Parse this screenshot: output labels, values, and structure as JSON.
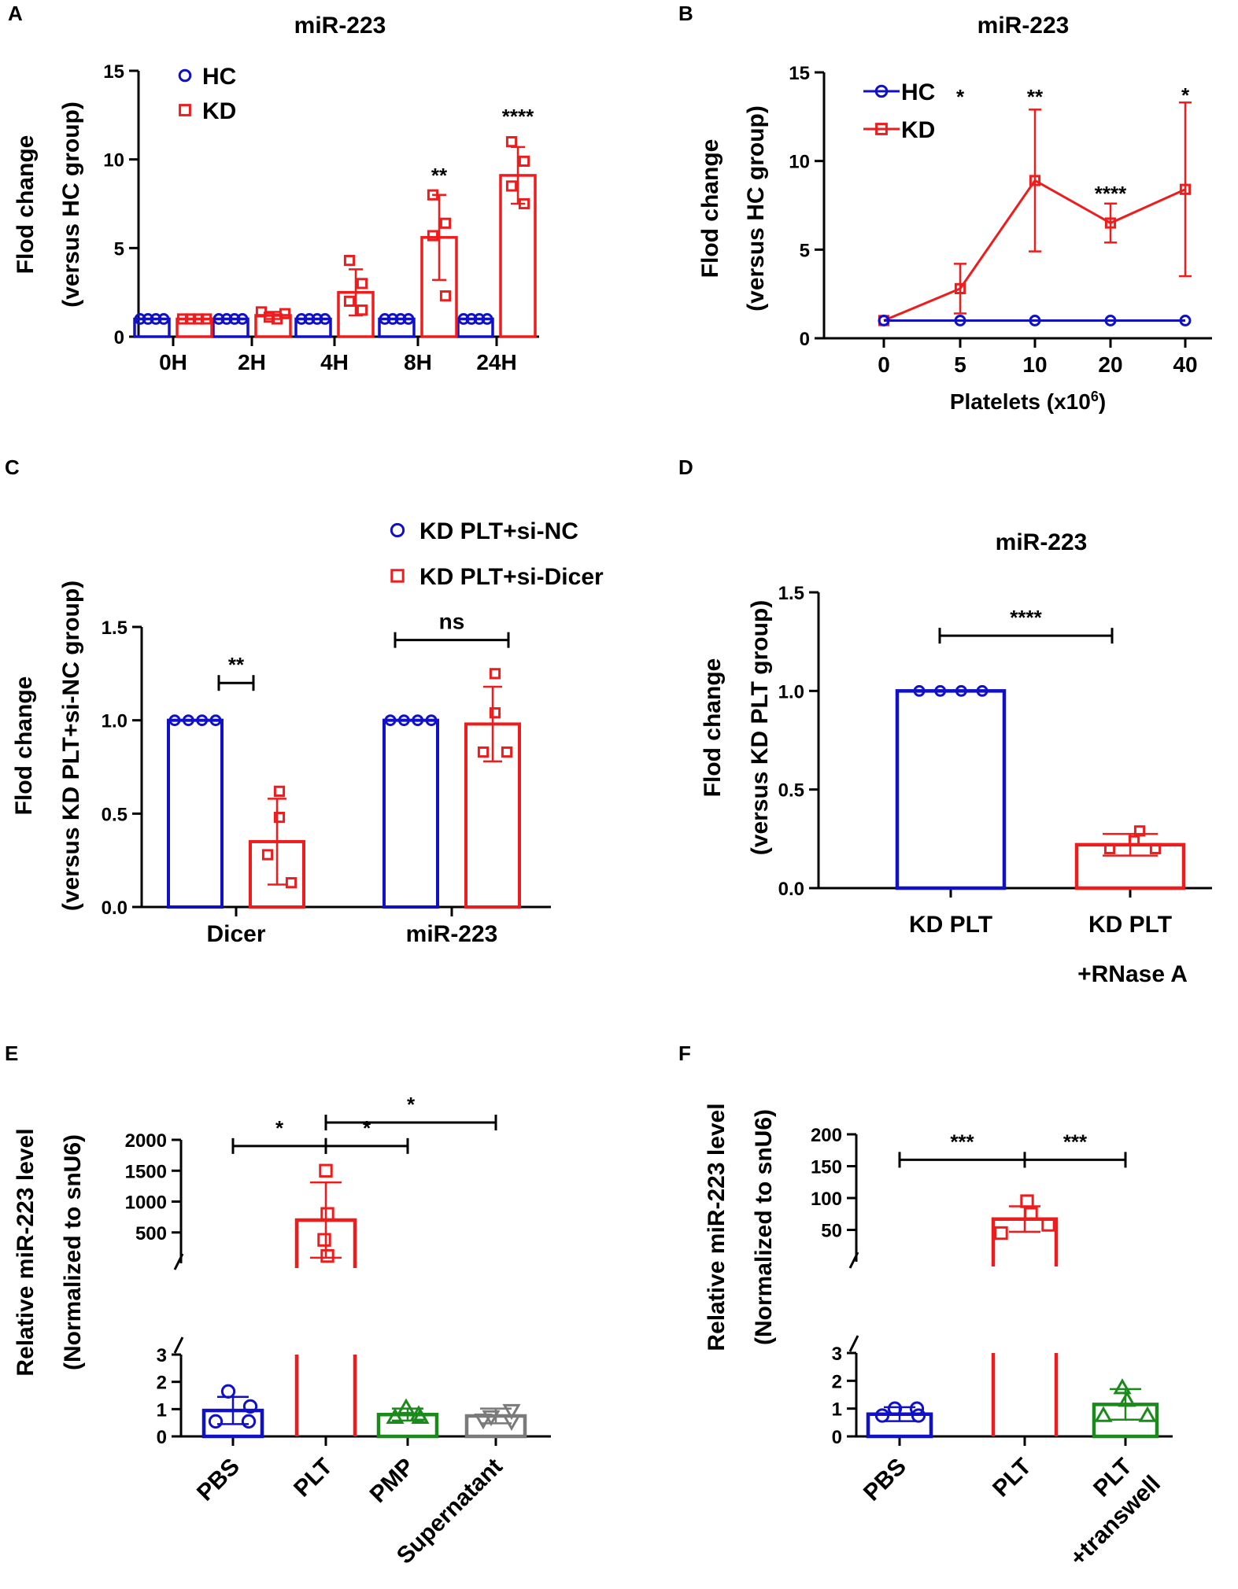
{
  "colors": {
    "hc": "#1010c8",
    "kd": "#ee1c1c",
    "green": "#1a8a1a",
    "gray": "#7a7a7a",
    "axis": "#000000"
  },
  "chart_data": [
    {
      "id": "A",
      "panel_label": "A",
      "type": "bar",
      "title": "miR-223",
      "ylabel_lines": [
        "Flod change",
        "(versus HC group)"
      ],
      "ylim": [
        0,
        15
      ],
      "yticks": [
        "0",
        "5",
        "10",
        "15"
      ],
      "categories": [
        "0H",
        "2H",
        "4H",
        "8H",
        "24H"
      ],
      "legend": [
        {
          "label": "HC",
          "marker": "circle",
          "color": "#1010c8"
        },
        {
          "label": "KD",
          "marker": "square",
          "color": "#ee1c1c"
        }
      ],
      "series": [
        {
          "name": "HC",
          "color": "#1010c8",
          "marker": "circle",
          "values": [
            1,
            1,
            1,
            1,
            1
          ],
          "sd": [
            0,
            0,
            0,
            0,
            0
          ],
          "points": [
            [
              1,
              1,
              1,
              1
            ],
            [
              1,
              1,
              1,
              1
            ],
            [
              1,
              1,
              1,
              1
            ],
            [
              1,
              1,
              1,
              1
            ],
            [
              1,
              1,
              1,
              1
            ]
          ]
        },
        {
          "name": "KD",
          "color": "#ee1c1c",
          "marker": "square",
          "values": [
            1,
            1.2,
            2.5,
            5.6,
            9.1
          ],
          "sd": [
            0,
            0.2,
            1.3,
            2.4,
            1.6
          ],
          "points": [
            [
              1,
              1,
              1,
              1
            ],
            [
              1.4,
              1.1,
              1.0,
              1.3
            ],
            [
              4.3,
              3.0,
              2.0,
              1.5
            ],
            [
              8.0,
              6.4,
              5.7,
              2.3
            ],
            [
              11.0,
              9.9,
              8.5,
              7.5
            ]
          ]
        }
      ],
      "significance": [
        "",
        "",
        "",
        "**",
        "****"
      ]
    },
    {
      "id": "B",
      "panel_label": "B",
      "type": "line",
      "title": "miR-223",
      "ylabel_lines": [
        "Flod change",
        "(versus HC group)"
      ],
      "xlabel": "Platelets (x10",
      "xlabel_sup": "6",
      "xlabel_end": ")",
      "ylim": [
        0,
        15
      ],
      "yticks": [
        "0",
        "5",
        "10",
        "15"
      ],
      "categories": [
        "0",
        "5",
        "10",
        "20",
        "40"
      ],
      "legend": [
        {
          "label": "HC",
          "marker": "circle",
          "color": "#1010c8"
        },
        {
          "label": "KD",
          "marker": "square",
          "color": "#ee1c1c"
        }
      ],
      "series": [
        {
          "name": "HC",
          "color": "#1010c8",
          "marker": "circle",
          "values": [
            1,
            1,
            1,
            1,
            1
          ],
          "sd": [
            0,
            0,
            0,
            0,
            0
          ]
        },
        {
          "name": "KD",
          "color": "#ee1c1c",
          "marker": "square",
          "values": [
            1,
            2.8,
            8.9,
            6.5,
            8.4
          ],
          "sd": [
            0,
            1.4,
            4.0,
            1.1,
            4.9
          ]
        }
      ],
      "significance": [
        "",
        "*",
        "**",
        "****",
        "*"
      ]
    },
    {
      "id": "C",
      "panel_label": "C",
      "type": "bar",
      "ylabel_lines": [
        "Flod change",
        "(versus KD PLT+si-NC group)"
      ],
      "ylim": [
        0,
        1.5
      ],
      "yticks": [
        "0.0",
        "0.5",
        "1.0",
        "1.5"
      ],
      "categories": [
        "Dicer",
        "miR-223"
      ],
      "legend": [
        {
          "label": "KD PLT+si-NC",
          "marker": "circle",
          "color": "#1010c8"
        },
        {
          "label": "KD PLT+si-Dicer",
          "marker": "square",
          "color": "#ee1c1c"
        }
      ],
      "series": [
        {
          "name": "KD PLT+si-NC",
          "color": "#1010c8",
          "marker": "circle",
          "values": [
            1.0,
            1.0
          ],
          "sd": [
            0,
            0
          ],
          "points": [
            [
              1,
              1,
              1,
              1
            ],
            [
              1,
              1,
              1,
              1
            ]
          ]
        },
        {
          "name": "KD PLT+si-Dicer",
          "color": "#ee1c1c",
          "marker": "square",
          "values": [
            0.35,
            0.98
          ],
          "sd": [
            0.23,
            0.2
          ],
          "points": [
            [
              0.62,
              0.48,
              0.28,
              0.13
            ],
            [
              1.25,
              1.04,
              0.83,
              0.83
            ]
          ]
        }
      ],
      "comparisons": [
        {
          "group": 0,
          "label": "**",
          "y": 1.2
        },
        {
          "group": 1,
          "label": "ns",
          "y": 1.43
        }
      ]
    },
    {
      "id": "D",
      "panel_label": "D",
      "type": "bar",
      "title": "miR-223",
      "ylabel_lines": [
        "Flod change",
        "(versus KD PLT group)"
      ],
      "ylim": [
        0,
        1.5
      ],
      "yticks": [
        "0.0",
        "0.5",
        "1.0",
        "1.5"
      ],
      "categories": [
        "KD PLT",
        "KD PLT"
      ],
      "category_sublabels": [
        "",
        "+RNase A"
      ],
      "bars": [
        {
          "color": "#1010c8",
          "marker": "circle",
          "value": 1.0,
          "sd": 0,
          "points": [
            1,
            1,
            1,
            1
          ]
        },
        {
          "color": "#ee1c1c",
          "marker": "square",
          "value": 0.22,
          "sd": 0.055,
          "points": [
            0.2,
            0.24,
            0.29,
            0.2
          ]
        }
      ],
      "comparisons": [
        {
          "from": 0,
          "to": 1,
          "label": "****",
          "y": 1.28
        }
      ]
    },
    {
      "id": "E",
      "panel_label": "E",
      "type": "bar",
      "axis_break": true,
      "ylabel_lines": [
        "Relative miR-223 level",
        "(Normalized to snU6)"
      ],
      "ylim_lower": [
        0,
        3
      ],
      "yticks_lower": [
        "0",
        "1",
        "2",
        "3"
      ],
      "ylim_upper": [
        0,
        2000
      ],
      "yticks_upper": [
        "500",
        "1000",
        "1500",
        "2000"
      ],
      "categories": [
        "PBS",
        "PLT",
        "PMP",
        "Supernatant"
      ],
      "bars": [
        {
          "color": "#1010c8",
          "marker": "circle",
          "value": 0.95,
          "sd": 0.5,
          "points": [
            1.65,
            1.1,
            0.55,
            0.55
          ]
        },
        {
          "color": "#ee1c1c",
          "marker": "square",
          "value": 700,
          "sd": 610,
          "points": [
            1500,
            800,
            380,
            120
          ]
        },
        {
          "color": "#1a8a1a",
          "marker": "triangle",
          "value": 0.8,
          "sd": 0.22,
          "points": [
            1.05,
            0.8,
            0.7,
            0.7
          ]
        },
        {
          "color": "#7a7a7a",
          "marker": "triangle-down",
          "value": 0.75,
          "sd": 0.27,
          "points": [
            0.95,
            0.72,
            0.6,
            0.55
          ]
        }
      ],
      "comparisons": [
        {
          "from": 0,
          "to": 1,
          "label": "*",
          "y": 1900
        },
        {
          "from": 1,
          "to": 2,
          "label": "*",
          "y": 1900
        },
        {
          "from": 1,
          "to": 3,
          "label": "*",
          "y": 2280
        }
      ]
    },
    {
      "id": "F",
      "panel_label": "F",
      "type": "bar",
      "axis_break": true,
      "ylabel_lines": [
        "Relative miR-223 level",
        "(Normalized to snU6)"
      ],
      "ylim_lower": [
        0,
        3
      ],
      "yticks_lower": [
        "0",
        "1",
        "2",
        "3"
      ],
      "ylim_upper": [
        0,
        200
      ],
      "yticks_upper": [
        "50",
        "100",
        "150",
        "200"
      ],
      "categories": [
        "PBS",
        "PLT",
        "PLT"
      ],
      "category_sublabels": [
        "",
        "",
        "+transwell"
      ],
      "bars": [
        {
          "color": "#1010c8",
          "marker": "circle",
          "value": 0.8,
          "sd": 0.25,
          "points": [
            1.0,
            1.0,
            0.75,
            0.75
          ]
        },
        {
          "color": "#ee1c1c",
          "marker": "square",
          "value": 67,
          "sd": 20,
          "points": [
            95,
            75,
            58,
            45
          ]
        },
        {
          "color": "#1a8a1a",
          "marker": "triangle",
          "value": 1.15,
          "sd": 0.55,
          "points": [
            1.75,
            1.3,
            0.75,
            0.75
          ]
        }
      ],
      "comparisons": [
        {
          "from": 0,
          "to": 1,
          "label": "***",
          "y": 160
        },
        {
          "from": 1,
          "to": 2,
          "label": "***",
          "y": 160
        }
      ]
    }
  ]
}
